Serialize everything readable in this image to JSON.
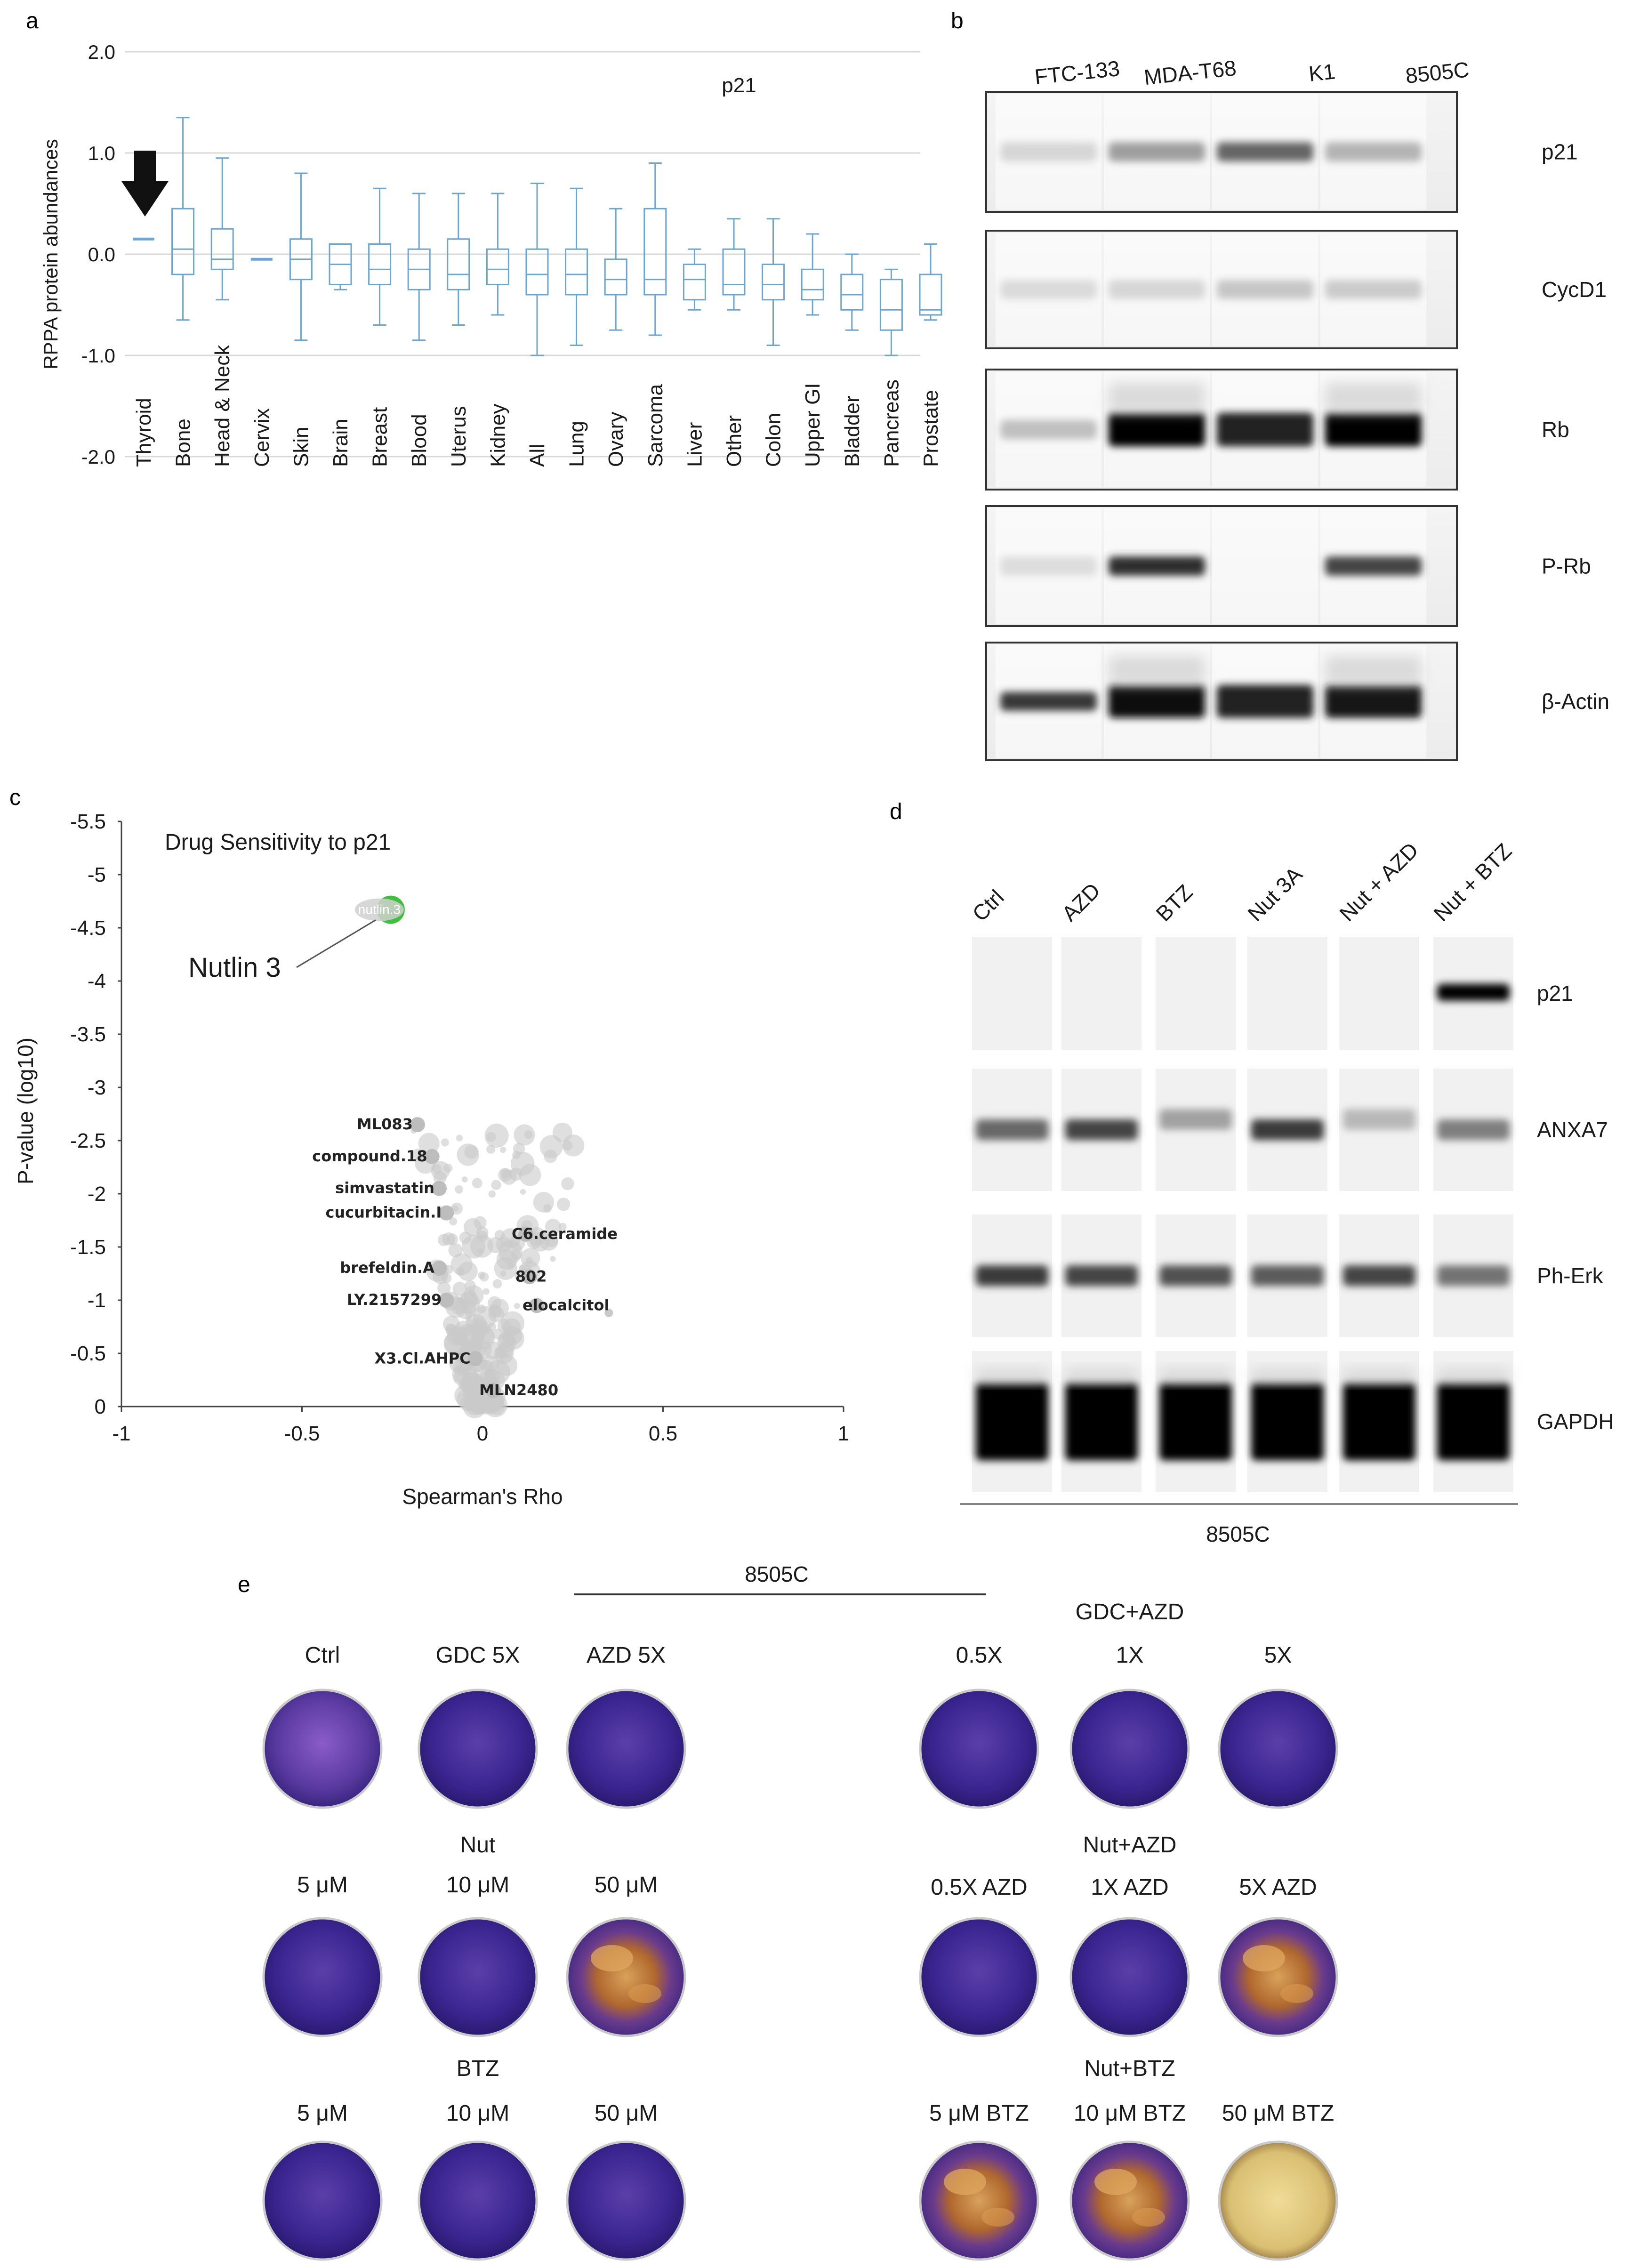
{
  "panel_a": {
    "label": "a",
    "chart_data": {
      "type": "box",
      "title": "p21",
      "ylabel": "RPPA protein abundances",
      "yticks": [
        "2.0",
        "1.0",
        "0.0",
        "-1.0",
        "-2.0"
      ],
      "ylim": [
        -2.0,
        2.0
      ],
      "categories": [
        "Thyroid",
        "Bone",
        "Head & Neck",
        "Cervix",
        "Skin",
        "Brain",
        "Breast",
        "Blood",
        "Uterus",
        "Kidney",
        "All",
        "Lung",
        "Ovary",
        "Sarcoma",
        "Liver",
        "Other",
        "Colon",
        "Upper GI",
        "Bladder",
        "Pancreas",
        "Prostate"
      ],
      "boxes": [
        {
          "wlo": 0.15,
          "q1": 0.15,
          "med": 0.15,
          "q3": 0.15,
          "whi": 0.15
        },
        {
          "wlo": -0.65,
          "q1": -0.2,
          "med": 0.05,
          "q3": 0.45,
          "whi": 1.35
        },
        {
          "wlo": -0.45,
          "q1": -0.15,
          "med": -0.05,
          "q3": 0.25,
          "whi": 0.95
        },
        {
          "wlo": -0.05,
          "q1": -0.05,
          "med": -0.05,
          "q3": -0.05,
          "whi": -0.05
        },
        {
          "wlo": -0.85,
          "q1": -0.25,
          "med": -0.05,
          "q3": 0.15,
          "whi": 0.8
        },
        {
          "wlo": -0.35,
          "q1": -0.3,
          "med": -0.1,
          "q3": 0.1,
          "whi": 0.1
        },
        {
          "wlo": -0.7,
          "q1": -0.3,
          "med": -0.15,
          "q3": 0.1,
          "whi": 0.65
        },
        {
          "wlo": -0.85,
          "q1": -0.35,
          "med": -0.15,
          "q3": 0.05,
          "whi": 0.6
        },
        {
          "wlo": -0.7,
          "q1": -0.35,
          "med": -0.2,
          "q3": 0.15,
          "whi": 0.6
        },
        {
          "wlo": -0.6,
          "q1": -0.3,
          "med": -0.15,
          "q3": 0.05,
          "whi": 0.6
        },
        {
          "wlo": -1.0,
          "q1": -0.4,
          "med": -0.2,
          "q3": 0.05,
          "whi": 0.7
        },
        {
          "wlo": -0.9,
          "q1": -0.4,
          "med": -0.2,
          "q3": 0.05,
          "whi": 0.65
        },
        {
          "wlo": -0.75,
          "q1": -0.4,
          "med": -0.25,
          "q3": -0.05,
          "whi": 0.45
        },
        {
          "wlo": -0.8,
          "q1": -0.4,
          "med": -0.25,
          "q3": 0.45,
          "whi": 0.9
        },
        {
          "wlo": -0.55,
          "q1": -0.45,
          "med": -0.25,
          "q3": -0.1,
          "whi": 0.05
        },
        {
          "wlo": -0.55,
          "q1": -0.4,
          "med": -0.3,
          "q3": 0.05,
          "whi": 0.35
        },
        {
          "wlo": -0.9,
          "q1": -0.45,
          "med": -0.3,
          "q3": -0.1,
          "whi": 0.35
        },
        {
          "wlo": -0.6,
          "q1": -0.45,
          "med": -0.35,
          "q3": -0.15,
          "whi": 0.2
        },
        {
          "wlo": -0.75,
          "q1": -0.55,
          "med": -0.4,
          "q3": -0.2,
          "whi": 0.0
        },
        {
          "wlo": -1.0,
          "q1": -0.75,
          "med": -0.55,
          "q3": -0.25,
          "whi": -0.15
        },
        {
          "wlo": -0.65,
          "q1": -0.6,
          "med": -0.55,
          "q3": -0.2,
          "whi": 0.1
        }
      ]
    }
  },
  "panel_b": {
    "label": "b",
    "lanes": [
      "FTC-133",
      "MDA-T68",
      "K1",
      "8505C"
    ],
    "proteins": [
      "p21",
      "CycD1",
      "Rb",
      "P-Rb",
      "β-Actin"
    ],
    "band_intensity": [
      [
        0.05,
        0.3,
        0.55,
        0.2
      ],
      [
        0.03,
        0.05,
        0.12,
        0.1
      ],
      [
        0.15,
        1.0,
        0.85,
        1.0
      ],
      [
        0.02,
        0.8,
        0.0,
        0.7
      ],
      [
        0.75,
        0.95,
        0.85,
        0.9
      ]
    ]
  },
  "panel_c": {
    "label": "c",
    "chart_data": {
      "type": "scatter",
      "title": "Drug Sensitivity to p21",
      "xlabel": "Spearman's Rho",
      "ylabel": "P-value (log10)",
      "xticks": [
        "-1",
        "-0.5",
        "0",
        "0.5",
        "1"
      ],
      "yticks": [
        "0",
        "-0.5",
        "-1",
        "-1.5",
        "-2",
        "-2.5",
        "-3",
        "-3.5",
        "-4",
        "-4.5",
        "-5",
        "-5.5"
      ],
      "xlim": [
        -1,
        1
      ],
      "ylim": [
        0,
        -5.5
      ],
      "highlight": {
        "name": "Nutlin 3",
        "point_label": "nutlin.3",
        "x": -0.27,
        "y": -4.67,
        "color": "#3fbf3f"
      },
      "labeled_points": [
        {
          "name": "ML083",
          "x": -0.18,
          "y": -2.65
        },
        {
          "name": "compound.18",
          "x": -0.14,
          "y": -2.35
        },
        {
          "name": "simvastatin",
          "x": -0.12,
          "y": -2.05
        },
        {
          "name": "cucurbitacin.I",
          "x": -0.1,
          "y": -1.82
        },
        {
          "name": "C6.ceramide",
          "x": 0.12,
          "y": -1.62
        },
        {
          "name": "brefeldin.A",
          "x": -0.12,
          "y": -1.3
        },
        {
          "name": "802",
          "x": 0.13,
          "y": -1.22
        },
        {
          "name": "LY.2157299",
          "x": -0.1,
          "y": -1.0
        },
        {
          "name": "elocalcitol",
          "x": 0.15,
          "y": -0.95
        },
        {
          "name": "X3.Cl.AHPC",
          "x": -0.02,
          "y": -0.45
        },
        {
          "name": "MLN2480",
          "x": 0.03,
          "y": -0.15
        }
      ]
    }
  },
  "panel_d": {
    "label": "d",
    "lanes": [
      "Ctrl",
      "AZD",
      "BTZ",
      "Nut 3A",
      "Nut + AZD",
      "Nut + BTZ"
    ],
    "proteins": [
      "p21",
      "ANXA7",
      "Ph-Erk",
      "GAPDH"
    ],
    "cell_line": "8505C",
    "band_intensity": [
      [
        0.0,
        0.0,
        0.0,
        0.0,
        0.0,
        1.0
      ],
      [
        0.55,
        0.7,
        0.3,
        0.75,
        0.2,
        0.45
      ],
      [
        0.75,
        0.7,
        0.65,
        0.6,
        0.7,
        0.5
      ],
      [
        1.0,
        1.0,
        1.0,
        1.0,
        1.0,
        1.0
      ]
    ]
  },
  "panel_e": {
    "label": "e",
    "cell_line": "8505C",
    "groups": [
      {
        "title": "",
        "labels": [
          "Ctrl",
          "GDC 5X",
          "AZD 5X"
        ],
        "wells": [
          "purple",
          "purple",
          "purple"
        ]
      },
      {
        "title": "GDC+AZD",
        "labels": [
          "0.5X",
          "1X",
          "5X"
        ],
        "wells": [
          "purple",
          "purple",
          "purple"
        ]
      },
      {
        "title": "Nut",
        "labels": [
          "5 μM",
          "10 μM",
          "50 μM"
        ],
        "wells": [
          "purple",
          "purple",
          "partial"
        ]
      },
      {
        "title": "Nut+AZD",
        "labels": [
          "0.5X AZD",
          "1X AZD",
          "5X AZD"
        ],
        "wells": [
          "purple",
          "purple",
          "partial"
        ]
      },
      {
        "title": "BTZ",
        "labels": [
          "5 μM",
          "10 μM",
          "50 μM"
        ],
        "wells": [
          "purple",
          "purple",
          "purple"
        ]
      },
      {
        "title": "Nut+BTZ",
        "labels": [
          "5 μM BTZ",
          "10 μM BTZ",
          "50 μM BTZ"
        ],
        "wells": [
          "partial",
          "partial",
          "cleared"
        ]
      }
    ]
  }
}
